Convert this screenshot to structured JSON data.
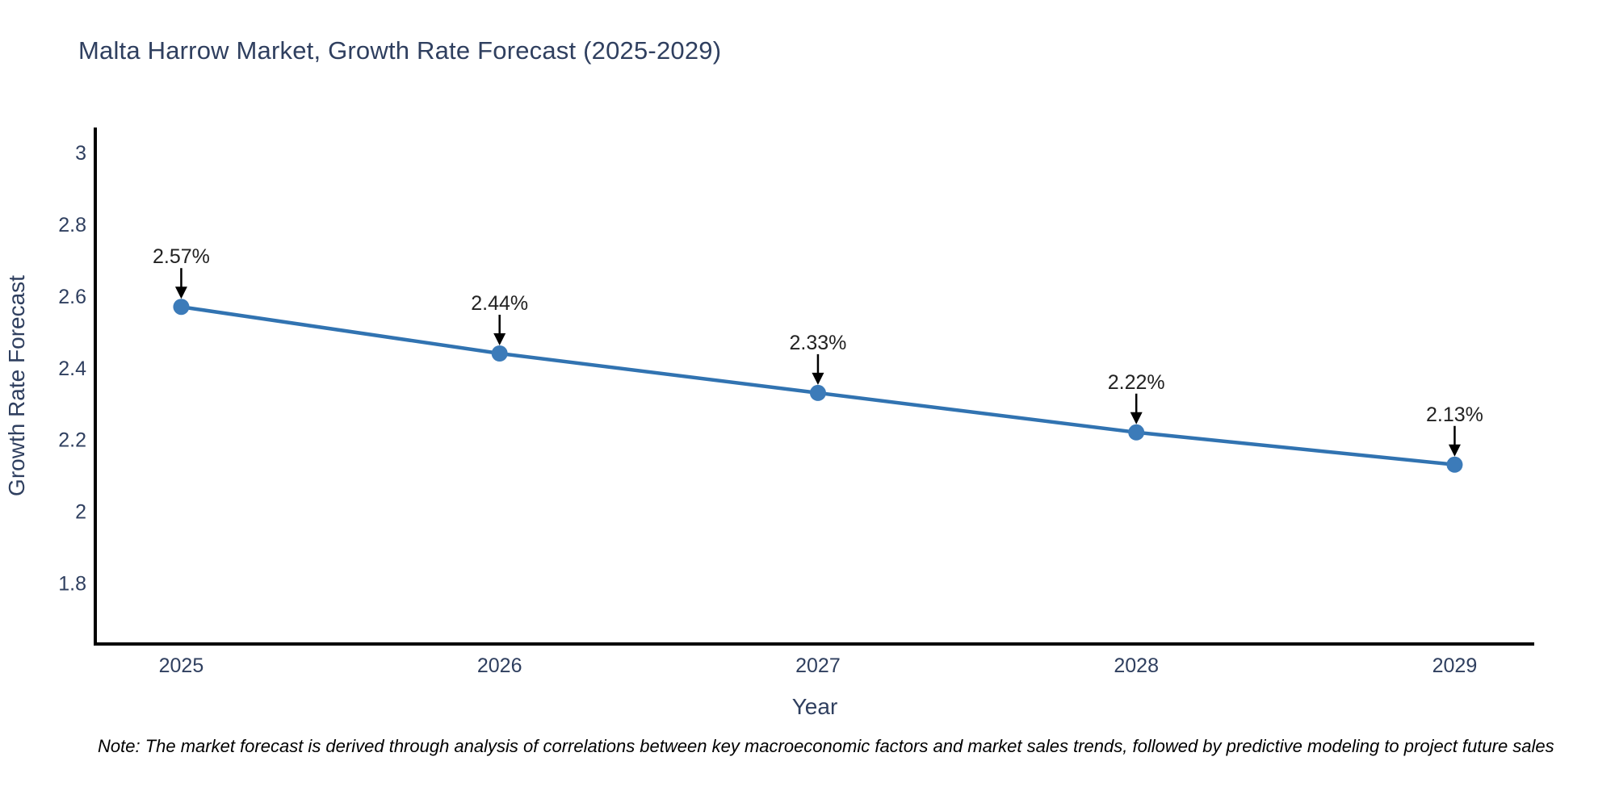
{
  "header": {
    "title": "Malta Harrow Market, Growth Rate Forecast (2025-2029)"
  },
  "footnote": "Note: The market forecast is derived through analysis of correlations between key macroeconomic factors and market sales trends, followed by predictive modeling to project future sales",
  "chart_data": {
    "type": "line",
    "title": "Malta Harrow Market, Growth Rate Forecast (2025-2029)",
    "xlabel": "Year",
    "ylabel": "Growth Rate Forecast",
    "x": [
      2025,
      2026,
      2027,
      2028,
      2029
    ],
    "series": [
      {
        "name": "Growth Rate Forecast",
        "values": [
          2.57,
          2.44,
          2.33,
          2.22,
          2.13
        ]
      }
    ],
    "data_labels": [
      "2.57%",
      "2.44%",
      "2.33%",
      "2.22%",
      "2.13%"
    ],
    "xticks": [
      "2025",
      "2026",
      "2027",
      "2028",
      "2029"
    ],
    "yticks": [
      "1.8",
      "2",
      "2.2",
      "2.4",
      "2.6",
      "2.8",
      "3"
    ],
    "xlim": [
      2024.73,
      2029.25
    ],
    "ylim": [
      1.63,
      3.07
    ],
    "grid": false,
    "legend_position": "none",
    "annotation_arrows": true,
    "colors": {
      "line": "#3173b1",
      "marker": "#3c7bb9",
      "axis": "#000000",
      "chart_text": "#2f3f5f",
      "annotation_text": "#222222",
      "arrow": "#000000"
    }
  }
}
